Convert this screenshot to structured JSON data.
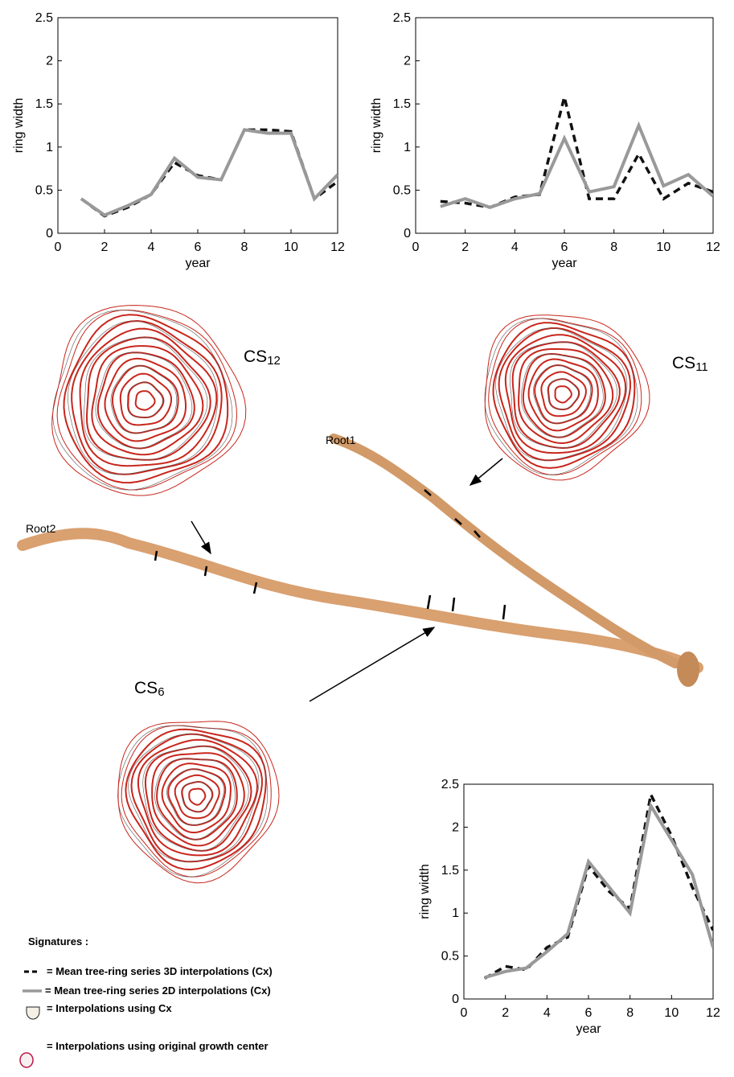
{
  "chart_data": [
    {
      "type": "line",
      "ylabel": "ring width",
      "xlabel": "year",
      "x": [
        1,
        2,
        3,
        4,
        5,
        6,
        7,
        8,
        9,
        10,
        11,
        12
      ],
      "xlim": [
        0,
        12
      ],
      "xticks": [
        0,
        2,
        4,
        6,
        8,
        10,
        12
      ],
      "ylim": [
        0,
        2.5
      ],
      "yticks": [
        0,
        0.5,
        1,
        1.5,
        2,
        2.5
      ],
      "series": [
        {
          "name": "= Mean tree-ring series  3D interpolations (Cx)",
          "color": "#111111",
          "dash": true,
          "values": [
            0.4,
            0.2,
            0.3,
            0.45,
            0.82,
            0.67,
            0.62,
            1.2,
            1.2,
            1.18,
            0.4,
            0.6
          ]
        },
        {
          "name": "= Mean tree-ring series  2D interpolations (Cx)",
          "color": "#999999",
          "dash": false,
          "values": [
            0.4,
            0.21,
            0.32,
            0.45,
            0.87,
            0.65,
            0.62,
            1.2,
            1.16,
            1.16,
            0.4,
            0.68
          ]
        }
      ]
    },
    {
      "type": "line",
      "ylabel": "ring width",
      "xlabel": "year",
      "x": [
        1,
        2,
        3,
        4,
        5,
        6,
        7,
        8,
        9,
        10,
        11,
        12
      ],
      "xlim": [
        0,
        12
      ],
      "xticks": [
        0,
        2,
        4,
        6,
        8,
        10,
        12
      ],
      "ylim": [
        0,
        2.5
      ],
      "yticks": [
        0,
        0.5,
        1,
        1.5,
        2,
        2.5
      ],
      "series": [
        {
          "name": "= Mean tree-ring series  3D interpolations (Cx)",
          "color": "#111111",
          "dash": true,
          "values": [
            0.37,
            0.35,
            0.3,
            0.42,
            0.45,
            1.58,
            0.4,
            0.4,
            0.92,
            0.4,
            0.58,
            0.48
          ]
        },
        {
          "name": "= Mean tree-ring series  2D interpolations (Cx)",
          "color": "#999999",
          "dash": false,
          "values": [
            0.31,
            0.4,
            0.3,
            0.4,
            0.46,
            1.1,
            0.48,
            0.54,
            1.25,
            0.55,
            0.68,
            0.43
          ]
        }
      ]
    },
    {
      "type": "line",
      "ylabel": "ring width",
      "xlabel": "year",
      "x": [
        1,
        2,
        3,
        4,
        5,
        6,
        7,
        8,
        9,
        10,
        11,
        12
      ],
      "xlim": [
        0,
        12
      ],
      "xticks": [
        0,
        2,
        4,
        6,
        8,
        10,
        12
      ],
      "ylim": [
        0,
        2.5
      ],
      "yticks": [
        0,
        0.5,
        1,
        1.5,
        2,
        2.5
      ],
      "series": [
        {
          "name": "= Mean tree-ring series  3D interpolations (Cx)",
          "color": "#111111",
          "dash": true,
          "values": [
            0.24,
            0.38,
            0.34,
            0.6,
            0.72,
            1.55,
            1.25,
            1.05,
            2.38,
            1.9,
            1.3,
            0.8
          ]
        },
        {
          "name": "= Mean tree-ring series  2D interpolations (Cx)",
          "color": "#999999",
          "dash": false,
          "values": [
            0.25,
            0.32,
            0.36,
            0.55,
            0.76,
            1.6,
            1.3,
            1.0,
            2.25,
            1.85,
            1.45,
            0.6
          ]
        }
      ]
    }
  ],
  "sections": [
    {
      "base": "CS",
      "sub": "12"
    },
    {
      "base": "CS",
      "sub": "11"
    },
    {
      "base": "CS",
      "sub": "6"
    }
  ],
  "roots": [
    "Root1",
    "Root2"
  ],
  "signatures": {
    "title": "Signatures :",
    "items": [
      "= Interpolations using Cx",
      "= Interpolations using original growth center"
    ]
  }
}
